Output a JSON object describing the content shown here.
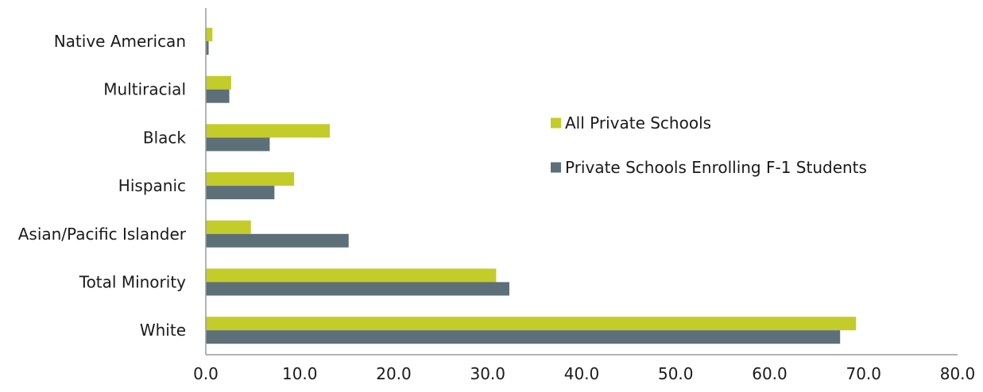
{
  "chart_data": {
    "type": "bar",
    "orientation": "horizontal",
    "categories": [
      "Native American",
      "Multiracial",
      "Black",
      "Hispanic",
      "Asian/Pacific Islander",
      "Total Minority",
      "White"
    ],
    "series": [
      {
        "name": "All Private Schools",
        "color": "#c3cc28",
        "values": [
          0.7,
          2.7,
          13.2,
          9.4,
          4.8,
          30.9,
          69.2
        ]
      },
      {
        "name": "Private Schools Enrolling F-1 Students",
        "color": "#5d6f78",
        "values": [
          0.3,
          2.5,
          6.8,
          7.3,
          15.2,
          32.3,
          67.5
        ]
      }
    ],
    "xlim": [
      0,
      80
    ],
    "xticks": [
      "0.0",
      "10.0",
      "20.0",
      "30.0",
      "40.0",
      "50.0",
      "60.0",
      "70.0",
      "80.0"
    ],
    "grid": false,
    "legend_position": "right"
  }
}
